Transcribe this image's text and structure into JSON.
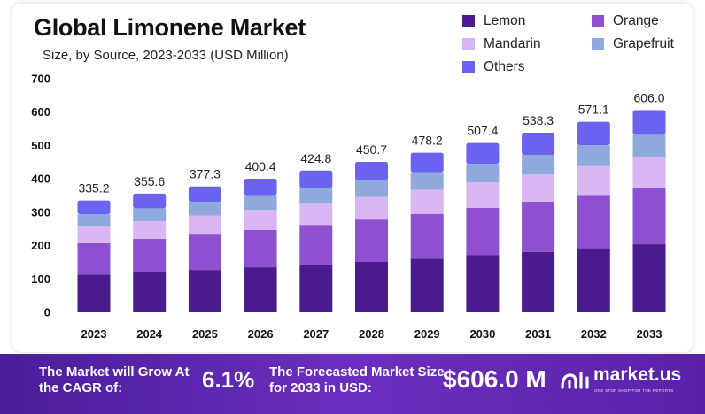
{
  "title": "Global Limonene Market",
  "subtitle": "Size, by Source, 2023-2033 (USD Million)",
  "legend": [
    {
      "label": "Lemon",
      "color": "#4a1b8c"
    },
    {
      "label": "Orange",
      "color": "#8e4fd1"
    },
    {
      "label": "Mandarin",
      "color": "#d7b6f2"
    },
    {
      "label": "Grapefruit",
      "color": "#8fa9dc"
    },
    {
      "label": "Others",
      "color": "#6a63f0"
    }
  ],
  "chart_data": {
    "type": "bar",
    "stacked": true,
    "title": "Global Limonene Market",
    "subtitle": "Size, by Source, 2023-2033 (USD Million)",
    "categories": [
      "2023",
      "2024",
      "2025",
      "2026",
      "2027",
      "2028",
      "2029",
      "2030",
      "2031",
      "2032",
      "2033"
    ],
    "totals": [
      335.2,
      355.6,
      377.3,
      400.4,
      424.8,
      450.7,
      478.2,
      507.4,
      538.3,
      571.1,
      606.0
    ],
    "total_labels": [
      "335.2",
      "355.6",
      "377.3",
      "400.4",
      "424.8",
      "450.7",
      "478.2",
      "507.4",
      "538.3",
      "571.1",
      "606.0"
    ],
    "series": [
      {
        "name": "Lemon",
        "color": "#4a1b8c",
        "values": [
          113,
          120,
          127,
          135,
          143,
          152,
          161,
          171,
          181,
          192,
          204
        ]
      },
      {
        "name": "Orange",
        "color": "#8e4fd1",
        "values": [
          94,
          100,
          106,
          112,
          119,
          126,
          134,
          142,
          151,
          160,
          170
        ]
      },
      {
        "name": "Mandarin",
        "color": "#d7b6f2",
        "values": [
          50,
          53,
          57,
          60,
          64,
          68,
          72,
          76,
          81,
          86,
          91
        ]
      },
      {
        "name": "Grapefruit",
        "color": "#8fa9dc",
        "values": [
          37,
          39,
          41,
          44,
          47,
          50,
          53,
          56,
          59,
          63,
          67
        ]
      },
      {
        "name": "Others",
        "color": "#6a63f0",
        "values": [
          41.2,
          43.6,
          46.3,
          49.4,
          51.8,
          54.7,
          58.2,
          62.4,
          66.3,
          70.1,
          74.0
        ]
      }
    ],
    "yticks": [
      0,
      100,
      200,
      300,
      400,
      500,
      600,
      700
    ],
    "ylim": [
      0,
      700
    ],
    "grid": false,
    "legend_position": "top-right"
  },
  "footer": {
    "cagr_label": "The Market will Grow At the CAGR of:",
    "cagr_value": "6.1%",
    "forecast_label": "The Forecasted Market Size for 2033 in USD:",
    "forecast_value": "$606.0 M",
    "brand": "market.us",
    "tagline": "ONE STOP SHOP FOR THE REPORTS",
    "background": "#5b24ad"
  }
}
